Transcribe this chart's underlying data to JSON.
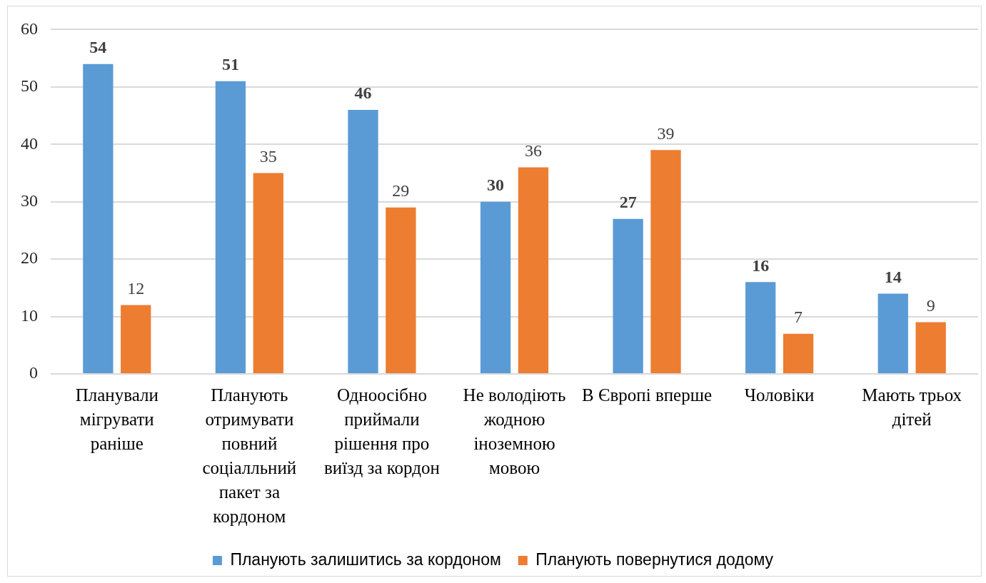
{
  "chart_data": {
    "type": "bar",
    "categories": [
      "Планували\nмігрувати\nраніше",
      "Планують\nотримувати\nповний\nсоціалльний\nпакет за\nкордоном",
      "Одноосібно\nприймали\nрішення про\nвиїзд за кордон",
      "Не володіють\nжодною\nіноземною\nмовою",
      "В Європі вперше",
      "Чоловіки",
      "Мають трьох\nдітей"
    ],
    "series": [
      {
        "name": "Планують залишитись за кордоном",
        "color": "#5b9bd5",
        "values": [
          54,
          51,
          46,
          30,
          27,
          16,
          14
        ]
      },
      {
        "name": "Планують повернутися додому",
        "color": "#ed7d31",
        "values": [
          12,
          35,
          29,
          36,
          39,
          7,
          9
        ]
      }
    ],
    "ylim": [
      0,
      60
    ],
    "yticks": [
      0,
      10,
      20,
      30,
      40,
      50,
      60
    ],
    "grid": "y",
    "legend": "bottom",
    "data_labels": true
  }
}
